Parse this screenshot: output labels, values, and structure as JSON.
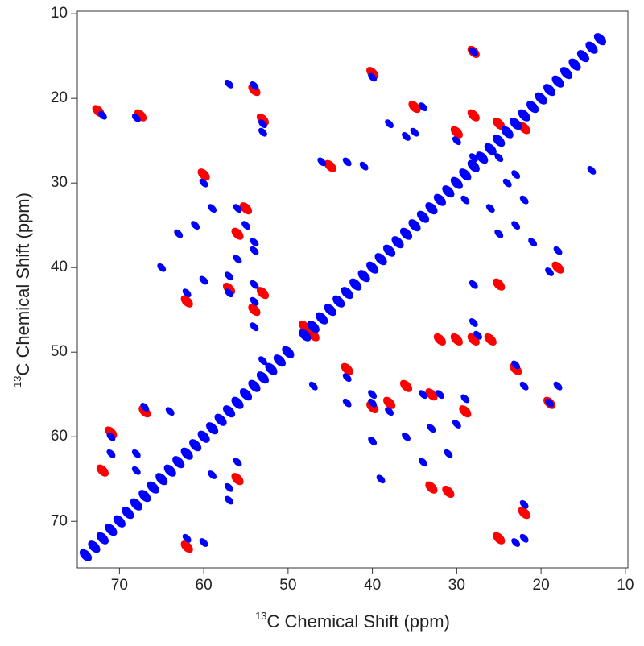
{
  "chart_data": {
    "type": "scatter",
    "xlabel": {
      "sup": "13",
      "text": "C Chemical Shift (ppm)"
    },
    "ylabel": {
      "sup": "13",
      "text": "C Chemical Shift (ppm)"
    },
    "xlim": [
      75,
      9.7
    ],
    "ylim": [
      9.7,
      75.5
    ],
    "xticks": [
      70,
      60,
      50,
      40,
      30,
      20,
      10
    ],
    "yticks": [
      10,
      20,
      30,
      40,
      50,
      60,
      70
    ],
    "series": [
      {
        "color": "#ff0000",
        "marker_size": 7,
        "x": [
          72.5,
          67.5,
          54,
          53,
          45,
          40,
          28,
          60,
          55,
          56,
          57,
          54,
          53,
          62,
          23,
          19,
          28,
          30,
          26,
          32,
          25,
          43,
          38,
          33,
          40,
          36,
          29,
          72,
          71,
          67,
          62,
          25,
          22,
          30,
          25,
          22,
          28,
          33,
          31,
          18,
          56,
          35,
          47,
          48
        ],
        "values": [
          21.5,
          22,
          19,
          22.5,
          28,
          17,
          14.5,
          29,
          33,
          36,
          42.5,
          45,
          43,
          44,
          52,
          56,
          48.5,
          48.5,
          48.5,
          48.5,
          42,
          52,
          56,
          55,
          56.5,
          54,
          57,
          64,
          59.5,
          57,
          73,
          72,
          69,
          24,
          23,
          23.5,
          22,
          66,
          66.5,
          40,
          65,
          21,
          48,
          47
        ]
      },
      {
        "color": "#0000ff",
        "marker_size": 5,
        "x": [
          72,
          68,
          57,
          54,
          53,
          53,
          46,
          43,
          41,
          40,
          28,
          14,
          60,
          59,
          56,
          55,
          54,
          56,
          54,
          61,
          63,
          60,
          57,
          57,
          54,
          54,
          54,
          62,
          65,
          23,
          22,
          19,
          18,
          19,
          18,
          28,
          28,
          27.5,
          47,
          43,
          43,
          40,
          40,
          38,
          34,
          32,
          29,
          30,
          33,
          36,
          40,
          34,
          31,
          39,
          71,
          71,
          67,
          64,
          59,
          57,
          57,
          62,
          60,
          56,
          53,
          22,
          22,
          23,
          36,
          35,
          38,
          34,
          30,
          28,
          25,
          24,
          22,
          23,
          25,
          21,
          29,
          26,
          23,
          68,
          68
        ],
        "values": [
          22,
          22.3,
          18.3,
          18.5,
          23,
          24,
          27.5,
          27.5,
          28,
          17.5,
          14.5,
          28.5,
          30,
          33,
          33,
          35,
          37,
          39,
          38,
          35,
          36,
          41.5,
          41,
          43,
          42,
          44,
          47,
          43,
          40,
          51.5,
          54,
          56,
          54,
          40.5,
          38,
          42,
          46.5,
          48,
          54,
          53,
          56,
          55,
          56,
          57,
          55,
          55,
          55.5,
          58.5,
          59,
          60,
          60.5,
          63,
          62,
          65,
          60,
          62,
          56.5,
          57,
          64.5,
          66,
          67.5,
          72,
          72.5,
          63,
          51,
          68,
          72,
          72.5,
          24.5,
          24,
          23,
          21,
          25,
          27,
          27,
          30,
          32,
          35,
          36,
          37,
          32,
          33,
          29,
          62,
          64
        ]
      },
      {
        "color": "#0000ff",
        "marker_size": 7,
        "x": [
          74,
          73,
          72,
          71,
          70,
          69,
          68,
          67,
          66,
          65,
          64,
          63,
          62,
          61,
          60,
          59,
          58,
          57,
          56,
          55,
          54,
          53,
          52,
          51,
          50,
          48,
          47,
          46,
          45,
          44,
          43,
          42,
          41,
          40,
          39,
          38,
          37,
          36,
          35,
          34,
          33,
          32,
          31,
          30,
          29,
          28,
          27,
          26,
          25,
          24,
          23,
          22,
          21,
          20,
          19,
          18,
          17,
          16,
          15,
          14,
          13
        ],
        "values": [
          74,
          73,
          72,
          71,
          70,
          69,
          68,
          67,
          66,
          65,
          64,
          63,
          62,
          61,
          60,
          59,
          58,
          57,
          56,
          55,
          54,
          53,
          52,
          51,
          50,
          48,
          47,
          46,
          45,
          44,
          43,
          42,
          41,
          40,
          39,
          38,
          37,
          36,
          35,
          34,
          33,
          32,
          31,
          30,
          29,
          28,
          27,
          26,
          25,
          24,
          23,
          22,
          21,
          20,
          19,
          18,
          17,
          16,
          15,
          14,
          13
        ]
      }
    ]
  }
}
